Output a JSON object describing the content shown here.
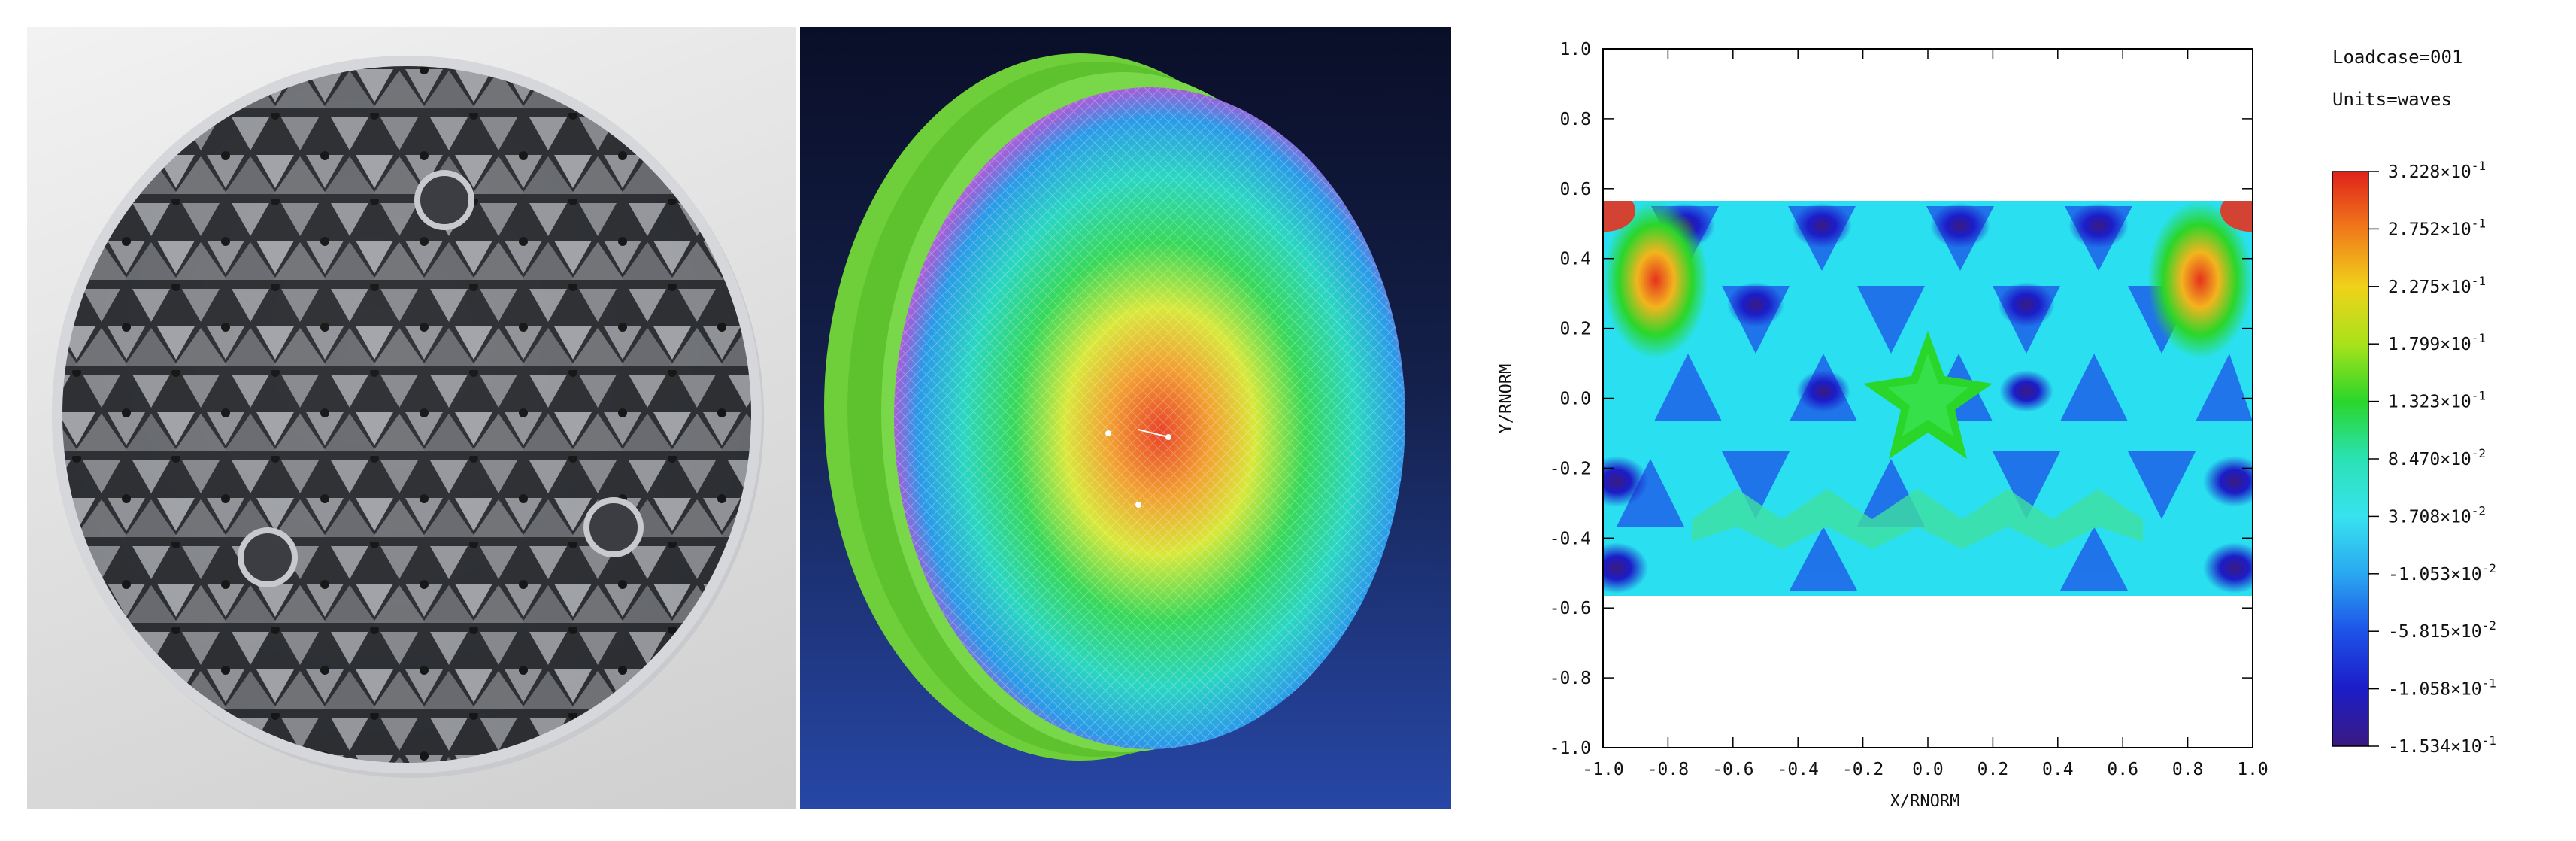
{
  "plot": {
    "loadcase": "Loadcase=001",
    "units": "Units=waves",
    "xlabel": "X/RNORM",
    "ylabel": "Y/RNORM",
    "x_ticks": [
      "-1.0",
      "-0.8",
      "-0.6",
      "-0.4",
      "-0.2",
      "0.0",
      "0.2",
      "0.4",
      "0.6",
      "0.8",
      "1.0"
    ],
    "y_ticks": [
      "1.0",
      "0.8",
      "0.6",
      "0.4",
      "0.2",
      "0.0",
      "-0.2",
      "-0.4",
      "-0.6",
      "-0.8",
      "-1.0"
    ],
    "colorbar": {
      "labels": [
        {
          "mant": "3.228",
          "exp": "-1"
        },
        {
          "mant": "2.752",
          "exp": "-1"
        },
        {
          "mant": "2.275",
          "exp": "-1"
        },
        {
          "mant": "1.799",
          "exp": "-1"
        },
        {
          "mant": "1.323",
          "exp": "-1"
        },
        {
          "mant": "8.470",
          "exp": "-2"
        },
        {
          "mant": "3.708",
          "exp": "-2"
        },
        {
          "mant": "-1.053",
          "exp": "-2"
        },
        {
          "mant": "-5.815",
          "exp": "-2"
        },
        {
          "mant": "-1.058",
          "exp": "-1"
        },
        {
          "mant": "-1.534",
          "exp": "-1"
        }
      ],
      "colors": [
        "#e0221a",
        "#f07a1a",
        "#f0d21a",
        "#a8e21a",
        "#2ad62a",
        "#2ae2b4",
        "#38e2f0",
        "#2aa8f0",
        "#1e52e8",
        "#1c1cc8",
        "#3a1a80"
      ]
    }
  }
}
